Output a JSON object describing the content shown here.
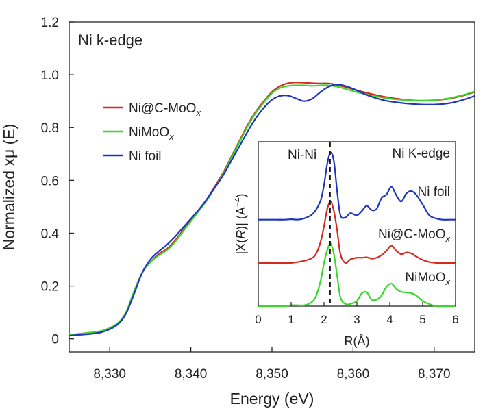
{
  "chart_data": [
    {
      "type": "line",
      "panel_label": "Ni k-edge",
      "xlabel": "Energy (eV)",
      "ylabel": "Normalized xμ (E)",
      "xlim": [
        8325,
        8375
      ],
      "ylim": [
        -0.05,
        1.2
      ],
      "xticks": [
        {
          "value": 8330,
          "label": "8,330"
        },
        {
          "value": 8340,
          "label": "8,340"
        },
        {
          "value": 8350,
          "label": "8,350"
        },
        {
          "value": 8360,
          "label": "8,360"
        },
        {
          "value": 8370,
          "label": "8,370"
        }
      ],
      "yticks": [
        {
          "value": 0,
          "label": "0"
        },
        {
          "value": 0.2,
          "label": "0.2"
        },
        {
          "value": 0.4,
          "label": "0.4"
        },
        {
          "value": 0.6,
          "label": "0.6"
        },
        {
          "value": 0.8,
          "label": "0.8"
        },
        {
          "value": 1.0,
          "label": "1.0"
        },
        {
          "value": 1.2,
          "label": "1.2"
        }
      ],
      "legend_position": "upper-left",
      "series": [
        {
          "name": "Ni@C-MoOx",
          "label_main": "Ni@C-MoO",
          "label_sub": "x",
          "color": "#d42a1e",
          "x": [
            8325,
            8328,
            8329.5,
            8331,
            8332,
            8333,
            8334,
            8335,
            8336,
            8337,
            8338,
            8339,
            8340,
            8341,
            8342,
            8343,
            8344,
            8345,
            8346,
            8347,
            8348,
            8349,
            8350,
            8351,
            8352,
            8353,
            8354,
            8355,
            8356,
            8357,
            8358,
            8359,
            8360,
            8361,
            8362,
            8363,
            8364,
            8365,
            8366,
            8367,
            8368,
            8369,
            8370,
            8371,
            8372,
            8373,
            8374,
            8375
          ],
          "y": [
            0.015,
            0.025,
            0.035,
            0.06,
            0.1,
            0.18,
            0.25,
            0.29,
            0.32,
            0.34,
            0.37,
            0.41,
            0.45,
            0.49,
            0.53,
            0.58,
            0.63,
            0.69,
            0.75,
            0.81,
            0.86,
            0.9,
            0.935,
            0.957,
            0.968,
            0.971,
            0.97,
            0.968,
            0.967,
            0.967,
            0.962,
            0.954,
            0.945,
            0.937,
            0.929,
            0.922,
            0.916,
            0.911,
            0.907,
            0.904,
            0.902,
            0.902,
            0.903,
            0.906,
            0.91,
            0.917,
            0.925,
            0.935
          ]
        },
        {
          "name": "NiMoOx",
          "label_main": "NiMoO",
          "label_sub": "x",
          "color": "#37d82a",
          "x": [
            8325,
            8328,
            8329.5,
            8331,
            8332,
            8333,
            8334,
            8335,
            8336,
            8337,
            8338,
            8339,
            8340,
            8341,
            8342,
            8343,
            8344,
            8345,
            8346,
            8347,
            8348,
            8349,
            8350,
            8351,
            8352,
            8353,
            8354,
            8355,
            8356,
            8357,
            8358,
            8359,
            8360,
            8361,
            8362,
            8363,
            8364,
            8365,
            8366,
            8367,
            8368,
            8369,
            8370,
            8371,
            8372,
            8373,
            8374,
            8375
          ],
          "y": [
            0.015,
            0.025,
            0.035,
            0.06,
            0.1,
            0.18,
            0.25,
            0.29,
            0.315,
            0.335,
            0.365,
            0.405,
            0.445,
            0.485,
            0.525,
            0.575,
            0.625,
            0.685,
            0.745,
            0.805,
            0.855,
            0.895,
            0.93,
            0.95,
            0.958,
            0.96,
            0.96,
            0.958,
            0.96,
            0.96,
            0.955,
            0.947,
            0.938,
            0.93,
            0.923,
            0.917,
            0.912,
            0.908,
            0.905,
            0.903,
            0.902,
            0.902,
            0.904,
            0.907,
            0.912,
            0.919,
            0.927,
            0.937
          ]
        },
        {
          "name": "Ni foil",
          "label_main": "Ni foil",
          "label_sub": "",
          "color": "#1f35c0",
          "x": [
            8325,
            8328,
            8329.5,
            8331,
            8332,
            8333,
            8334,
            8335,
            8336,
            8337,
            8338,
            8339,
            8340,
            8341,
            8342,
            8343,
            8344,
            8345,
            8346,
            8347,
            8348,
            8349,
            8350,
            8351,
            8352,
            8353,
            8354,
            8355,
            8356,
            8357,
            8358,
            8359,
            8360,
            8361,
            8362,
            8363,
            8364,
            8365,
            8366,
            8367,
            8368,
            8369,
            8370,
            8371,
            8372,
            8373,
            8374,
            8375
          ],
          "y": [
            0.012,
            0.02,
            0.03,
            0.055,
            0.095,
            0.17,
            0.25,
            0.3,
            0.33,
            0.355,
            0.385,
            0.42,
            0.455,
            0.49,
            0.53,
            0.575,
            0.62,
            0.675,
            0.73,
            0.785,
            0.835,
            0.875,
            0.905,
            0.92,
            0.921,
            0.91,
            0.9,
            0.91,
            0.935,
            0.955,
            0.963,
            0.958,
            0.947,
            0.933,
            0.92,
            0.91,
            0.902,
            0.897,
            0.893,
            0.89,
            0.888,
            0.887,
            0.887,
            0.889,
            0.893,
            0.9,
            0.909,
            0.92
          ]
        }
      ]
    },
    {
      "type": "line",
      "panel_label": "Ni K-edge",
      "xlabel": "R(Å)",
      "ylabel_prefix": "|X(",
      "ylabel_r": "R",
      "ylabel_mid": ")| (A",
      "ylabel_exp": "−4",
      "ylabel_suffix": ")",
      "xlim": [
        0,
        6
      ],
      "ylim": [
        0,
        3.8
      ],
      "xticks": [
        {
          "value": 0,
          "label": "0"
        },
        {
          "value": 1,
          "label": "1"
        },
        {
          "value": 2,
          "label": "2"
        },
        {
          "value": 3,
          "label": "3"
        },
        {
          "value": 4,
          "label": "4"
        },
        {
          "value": 5,
          "label": "5"
        },
        {
          "value": 6,
          "label": "6"
        }
      ],
      "reference_line": {
        "x": 2.18,
        "label": "Ni-Ni"
      },
      "series": [
        {
          "name": "Ni foil",
          "label_main": "Ni foil",
          "label_sub": "",
          "color": "#1f35c0",
          "x": [
            0,
            0.4,
            0.8,
            1.0,
            1.2,
            1.4,
            1.6,
            1.75,
            1.9,
            2.0,
            2.1,
            2.2,
            2.3,
            2.4,
            2.5,
            2.65,
            2.8,
            3.0,
            3.15,
            3.3,
            3.45,
            3.6,
            3.75,
            3.9,
            4.05,
            4.2,
            4.35,
            4.5,
            4.65,
            4.8,
            5.0,
            5.2,
            5.4,
            5.6,
            5.8,
            6.0
          ],
          "y": [
            2.0,
            2.0,
            2.0,
            2.01,
            2.0,
            2.03,
            2.1,
            2.22,
            2.45,
            2.8,
            3.3,
            3.55,
            3.35,
            2.65,
            2.1,
            2.05,
            2.15,
            2.1,
            2.2,
            2.32,
            2.22,
            2.25,
            2.5,
            2.58,
            2.76,
            2.56,
            2.42,
            2.6,
            2.66,
            2.58,
            2.35,
            2.1,
            2.03,
            2.0,
            2.0,
            2.0
          ]
        },
        {
          "name": "Ni@C-MoOx",
          "label_main": "Ni@C-MoO",
          "label_sub": "x",
          "color": "#d42a1e",
          "x": [
            0,
            0.4,
            0.8,
            1.0,
            1.2,
            1.4,
            1.6,
            1.75,
            1.9,
            2.0,
            2.1,
            2.2,
            2.3,
            2.4,
            2.5,
            2.65,
            2.8,
            3.0,
            3.15,
            3.3,
            3.45,
            3.6,
            3.75,
            3.9,
            4.05,
            4.2,
            4.35,
            4.5,
            4.65,
            4.8,
            5.0,
            5.2,
            5.4,
            5.6,
            5.8,
            6.0
          ],
          "y": [
            1.0,
            1.0,
            1.0,
            1.0,
            1.02,
            1.05,
            1.1,
            1.2,
            1.5,
            1.85,
            2.25,
            2.42,
            2.2,
            1.75,
            1.2,
            1.0,
            1.08,
            1.12,
            1.12,
            1.13,
            1.1,
            1.12,
            1.18,
            1.28,
            1.4,
            1.28,
            1.2,
            1.24,
            1.22,
            1.15,
            1.07,
            1.02,
            1.0,
            1.0,
            1.0,
            1.0
          ]
        },
        {
          "name": "NiMoOx",
          "label_main": "NiMoO",
          "label_sub": "x",
          "color": "#37d82a",
          "x": [
            0,
            0.4,
            0.8,
            1.0,
            1.2,
            1.4,
            1.6,
            1.75,
            1.9,
            2.0,
            2.1,
            2.2,
            2.3,
            2.4,
            2.5,
            2.65,
            2.8,
            3.0,
            3.15,
            3.3,
            3.45,
            3.6,
            3.75,
            3.9,
            4.05,
            4.2,
            4.35,
            4.5,
            4.65,
            4.8,
            5.0,
            5.2,
            5.4,
            5.6,
            5.8,
            6.0
          ],
          "y": [
            0.0,
            0.0,
            0.0,
            0.02,
            0.02,
            0.02,
            0.08,
            0.22,
            0.6,
            1.0,
            1.3,
            1.45,
            1.2,
            0.7,
            0.2,
            0.05,
            0.05,
            0.12,
            0.3,
            0.32,
            0.15,
            0.15,
            0.25,
            0.45,
            0.52,
            0.4,
            0.33,
            0.32,
            0.3,
            0.25,
            0.12,
            0.05,
            0.0,
            0.0,
            0.0,
            0.0
          ]
        }
      ]
    }
  ]
}
